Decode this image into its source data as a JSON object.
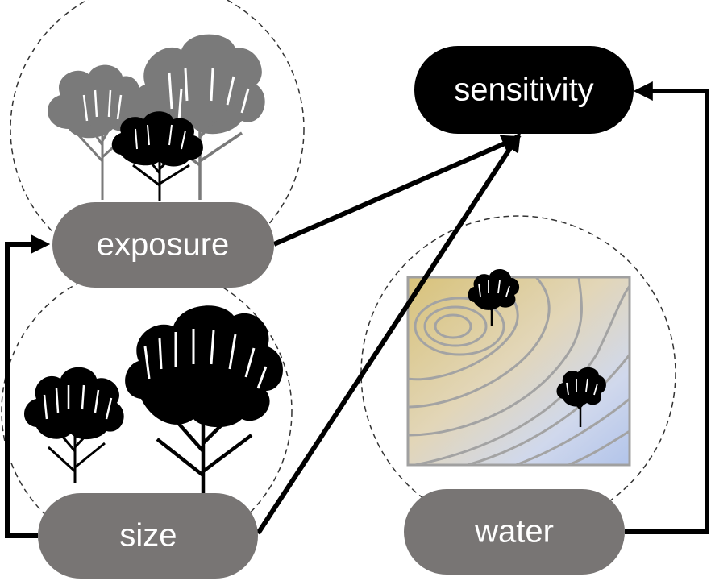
{
  "nodes": {
    "sensitivity": {
      "label": "sensitivity",
      "color": "#000000"
    },
    "exposure": {
      "label": "exposure",
      "color": "#787574"
    },
    "size": {
      "label": "size",
      "color": "#787574"
    },
    "water": {
      "label": "water",
      "color": "#787574"
    }
  },
  "edges": [
    {
      "from": "exposure",
      "to": "sensitivity"
    },
    {
      "from": "size",
      "to": "sensitivity"
    },
    {
      "from": "water",
      "to": "sensitivity"
    },
    {
      "from": "size",
      "to": "exposure"
    }
  ],
  "illustrations": {
    "exposure": "tree-canopy-icon",
    "size": "tree-size-icon",
    "water": "topographic-map-icon"
  },
  "colors": {
    "arrow": "#000000",
    "tree_back": "#7a7a7a",
    "tree_front": "#000000",
    "map_dry": "#d8c27a",
    "map_wet": "#b4c6ea",
    "contour": "#9d9d9d",
    "dashed_circle": "#333333"
  }
}
